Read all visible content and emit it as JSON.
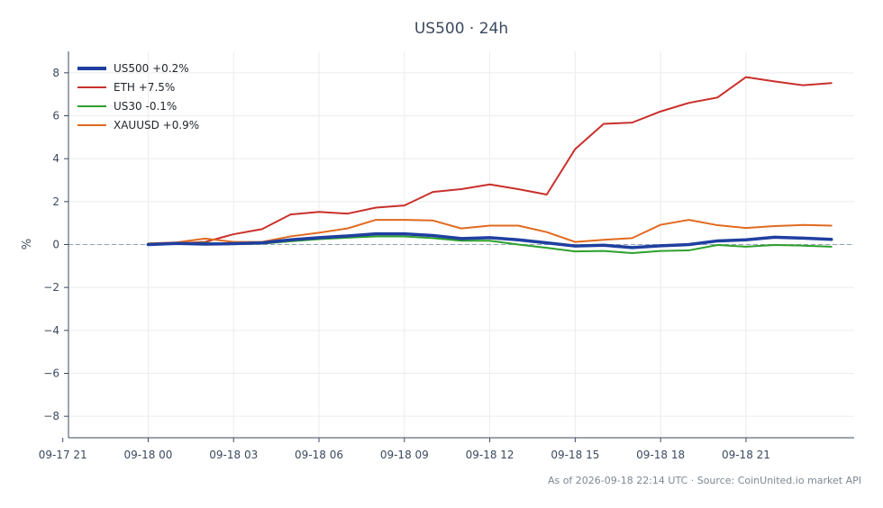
{
  "chart_data": {
    "type": "line",
    "title": "US500 · 24h",
    "xlabel": "",
    "ylabel": "%",
    "ylim": [
      -9,
      9
    ],
    "xlim_hours": [
      -2.8,
      24.8
    ],
    "grid": true,
    "legend_position": "top-left",
    "zero_line": true,
    "x_tick_labels": [
      "09-17 21",
      "09-18 00",
      "09-18 03",
      "09-18 06",
      "09-18 09",
      "09-18 12",
      "09-18 15",
      "09-18 18",
      "09-18 21"
    ],
    "y_ticks": [
      -8,
      -6,
      -4,
      -2,
      0,
      2,
      4,
      6,
      8
    ],
    "y_tick_labels": [
      "−8",
      "−6",
      "−4",
      "−2",
      "0",
      "2",
      "4",
      "6",
      "8"
    ],
    "x": [
      "09-17 22:00",
      "09-17 23:00",
      "09-18 00:00",
      "09-18 01:00",
      "09-18 02:00",
      "09-18 03:00",
      "09-18 04:00",
      "09-18 05:00",
      "09-18 06:00",
      "09-18 07:00",
      "09-18 08:00",
      "09-18 09:00",
      "09-18 10:00",
      "09-18 11:00",
      "09-18 12:00",
      "09-18 13:00",
      "09-18 14:00",
      "09-18 15:00",
      "09-18 16:00",
      "09-18 17:00",
      "09-18 18:00",
      "09-18 19:00",
      "09-18 20:00",
      "09-18 21:00",
      "09-18 22:00"
    ],
    "series": [
      {
        "name": "US500 +0.2%",
        "color": "#1f3fa0",
        "values": [
          0.0,
          0.05,
          0.02,
          0.04,
          0.08,
          0.22,
          0.32,
          0.4,
          0.5,
          0.5,
          0.42,
          0.28,
          0.32,
          0.22,
          0.08,
          -0.07,
          -0.03,
          -0.14,
          -0.06,
          0.0,
          0.17,
          0.22,
          0.34,
          0.3,
          0.24
        ]
      },
      {
        "name": "ETH +7.5%",
        "color": "#c9302c",
        "values": [
          0.0,
          0.05,
          0.12,
          0.48,
          0.72,
          1.4,
          1.52,
          1.44,
          1.72,
          1.82,
          2.45,
          2.58,
          2.8,
          2.58,
          2.33,
          4.45,
          5.62,
          5.68,
          6.2,
          6.6,
          6.85,
          7.8,
          7.6,
          7.42,
          7.52
        ]
      },
      {
        "name": "US30 -0.1%",
        "color": "#2ca02c",
        "values": [
          0.03,
          0.05,
          0.08,
          0.02,
          0.04,
          0.15,
          0.25,
          0.32,
          0.38,
          0.38,
          0.3,
          0.18,
          0.18,
          0.0,
          -0.15,
          -0.32,
          -0.3,
          -0.4,
          -0.3,
          -0.27,
          -0.02,
          -0.1,
          -0.02,
          -0.05,
          -0.1
        ]
      },
      {
        "name": "XAUUSD +0.9%",
        "color": "#e06a1e",
        "values": [
          0.05,
          0.1,
          0.28,
          0.12,
          0.12,
          0.38,
          0.55,
          0.75,
          1.15,
          1.15,
          1.12,
          0.75,
          0.88,
          0.88,
          0.58,
          0.12,
          0.22,
          0.3,
          0.92,
          1.15,
          0.9,
          0.77,
          0.86,
          0.91,
          0.88
        ]
      }
    ],
    "footer_note": "As of 2026-09-18 22:14 UTC · Source: CoinUnited.io market API"
  }
}
